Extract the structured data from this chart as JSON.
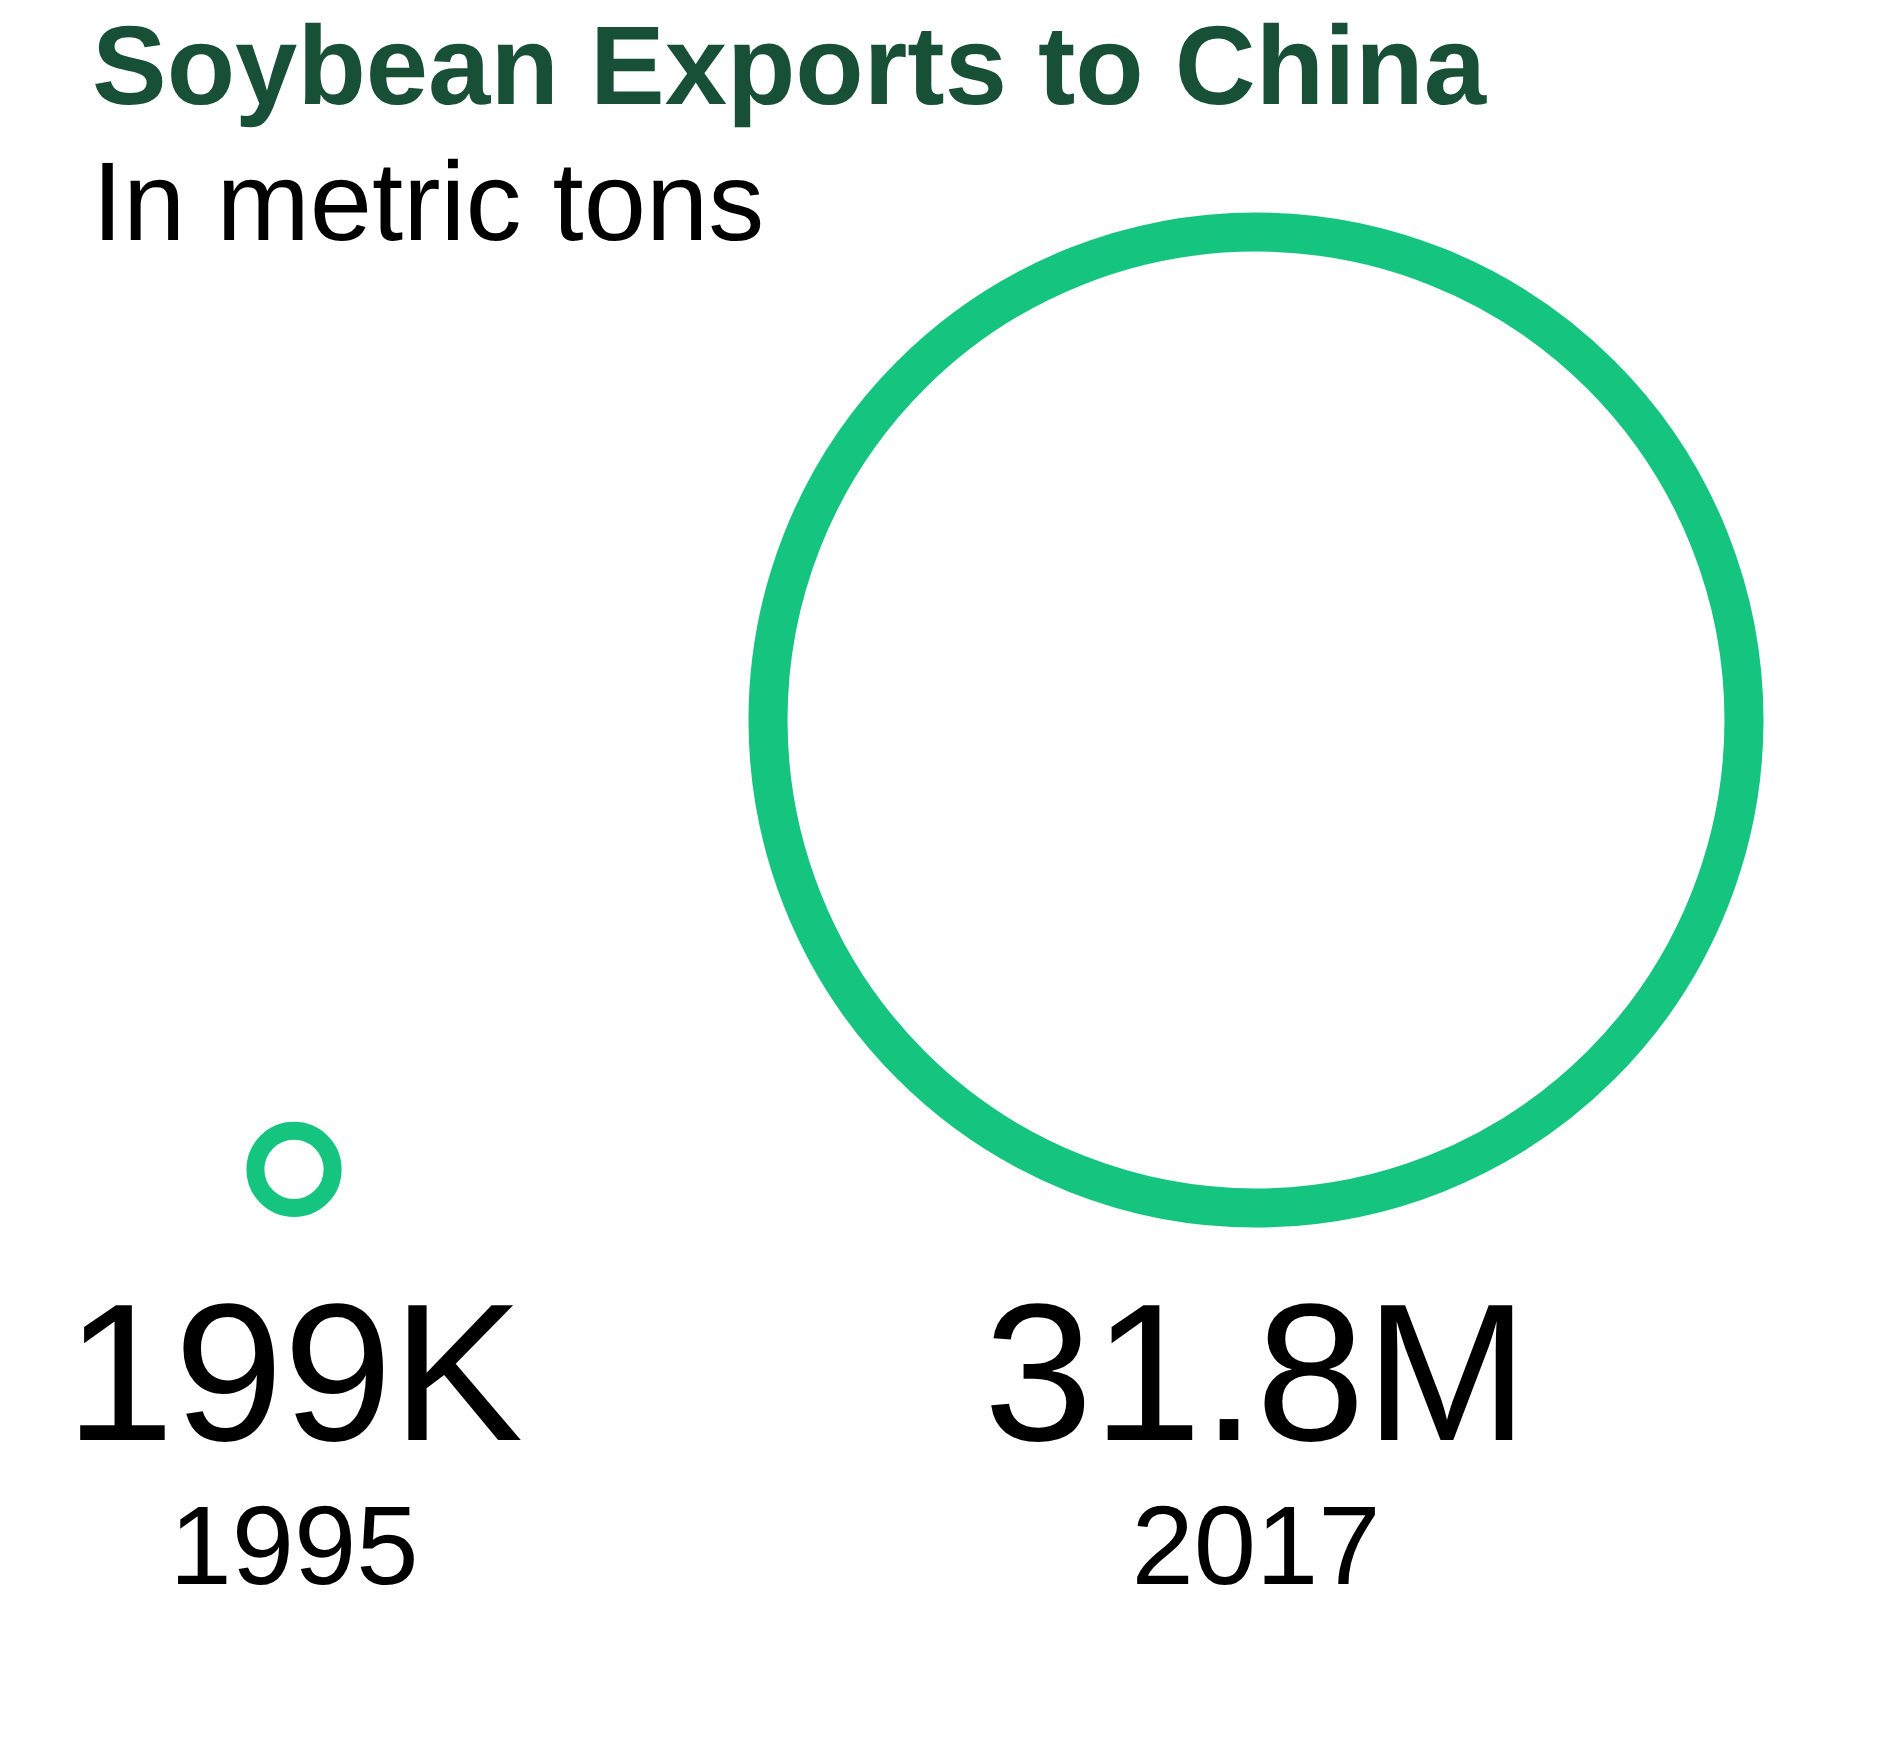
{
  "chart_data": {
    "type": "other",
    "title": "Soybean Exports to China",
    "subtitle": "In metric tons",
    "categories": [
      "1995",
      "2017"
    ],
    "values": [
      199000,
      31800000
    ],
    "value_labels": [
      "199K",
      "31.8M"
    ],
    "color": "#14c47f"
  }
}
